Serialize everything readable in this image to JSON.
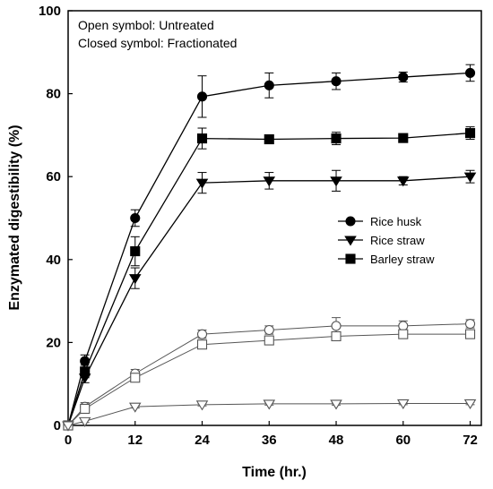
{
  "chart_data": {
    "type": "line",
    "title": "",
    "xlabel": "Time (hr.)",
    "ylabel": "Enzymated digestibility (%)",
    "xlim": [
      0,
      74
    ],
    "ylim": [
      0,
      100
    ],
    "xticks": [
      0,
      12,
      24,
      36,
      48,
      60,
      72
    ],
    "yticks": [
      0,
      20,
      40,
      60,
      80,
      100
    ],
    "x": [
      0,
      3,
      12,
      24,
      36,
      48,
      60,
      72
    ],
    "annotations": [
      "Open symbol: Untreated",
      "Closed symbol: Fractionated"
    ],
    "legend": [
      {
        "label": "Rice husk",
        "marker": "circle"
      },
      {
        "label": "Rice straw",
        "marker": "triangle-down"
      },
      {
        "label": "Barley straw",
        "marker": "square"
      }
    ],
    "legend_position": "middle-right",
    "grid": false,
    "series": [
      {
        "name": "Rice husk",
        "marker": "circle",
        "filled": true,
        "values": [
          0,
          15.5,
          50,
          79.3,
          82,
          83,
          84,
          85
        ],
        "errors": [
          0,
          1.5,
          2,
          5,
          3,
          2,
          1.2,
          2
        ]
      },
      {
        "name": "Rice straw",
        "marker": "triangle-down",
        "filled": true,
        "values": [
          0,
          11.5,
          35.5,
          58.5,
          59,
          59,
          59,
          60
        ],
        "errors": [
          0,
          1.2,
          2.5,
          2.5,
          2,
          2.5,
          1,
          1.5
        ]
      },
      {
        "name": "Barley straw",
        "marker": "square",
        "filled": true,
        "values": [
          0,
          13,
          42,
          69.2,
          69,
          69.2,
          69.3,
          70.5
        ],
        "errors": [
          0,
          1.5,
          3.5,
          2.5,
          0.8,
          1.5,
          0.8,
          1.5
        ]
      },
      {
        "name": "Rice husk",
        "marker": "circle",
        "filled": false,
        "values": [
          0,
          4.5,
          12.5,
          22,
          23,
          24,
          24,
          24.5
        ],
        "errors": [
          0,
          1,
          1,
          1,
          1,
          2,
          1.2,
          1
        ]
      },
      {
        "name": "Barley straw",
        "marker": "square",
        "filled": false,
        "values": [
          0,
          4,
          11.5,
          19.5,
          20.5,
          21.5,
          22,
          22
        ],
        "errors": [
          0,
          1,
          1,
          1,
          1,
          1,
          0.8,
          0.8
        ]
      },
      {
        "name": "Rice straw",
        "marker": "triangle-down",
        "filled": false,
        "values": [
          0,
          1,
          4.5,
          5,
          5.2,
          5.2,
          5.3,
          5.3
        ],
        "errors": [
          0,
          0.3,
          0.3,
          0.3,
          0.3,
          0.3,
          0.3,
          0.3
        ]
      }
    ]
  }
}
